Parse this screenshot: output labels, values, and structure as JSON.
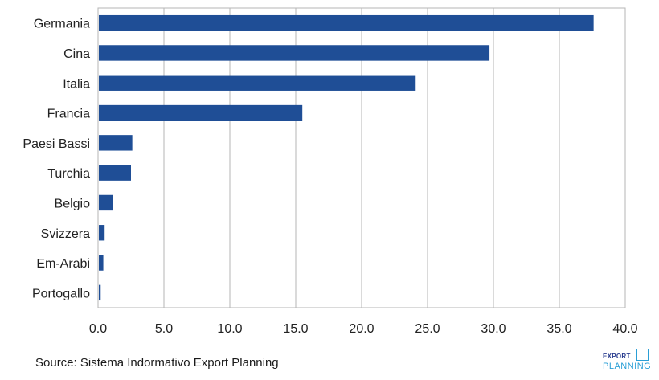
{
  "chart_data": {
    "type": "bar",
    "orientation": "horizontal",
    "title": "",
    "xlabel": "",
    "ylabel": "",
    "categories": [
      "Germania",
      "Cina",
      "Italia",
      "Francia",
      "Paesi Bassi",
      "Turchia",
      "Belgio",
      "Svizzera",
      "Em-Arabi",
      "Portogallo"
    ],
    "values": [
      37.6,
      29.7,
      24.1,
      15.5,
      2.6,
      2.5,
      1.1,
      0.5,
      0.4,
      0.2
    ],
    "xlim": [
      0,
      40
    ],
    "xticks": [
      0,
      5,
      10,
      15,
      20,
      25,
      30,
      35,
      40
    ],
    "tick_labels": [
      "0.0",
      "5.0",
      "10.0",
      "15.0",
      "20.0",
      "25.0",
      "30.0",
      "35.0",
      "40.0"
    ],
    "grid": true,
    "bar_color": "#1f4e96",
    "grid_color": "#b5b5b5",
    "frame_color": "#b5b5b5"
  },
  "source_text": "Source: Sistema Indormativo Export Planning",
  "logo": {
    "top_text": "EXPORT",
    "bottom_text": "PLANNING",
    "top_color": "#2a3d8f",
    "bottom_color": "#2a9fd6"
  }
}
